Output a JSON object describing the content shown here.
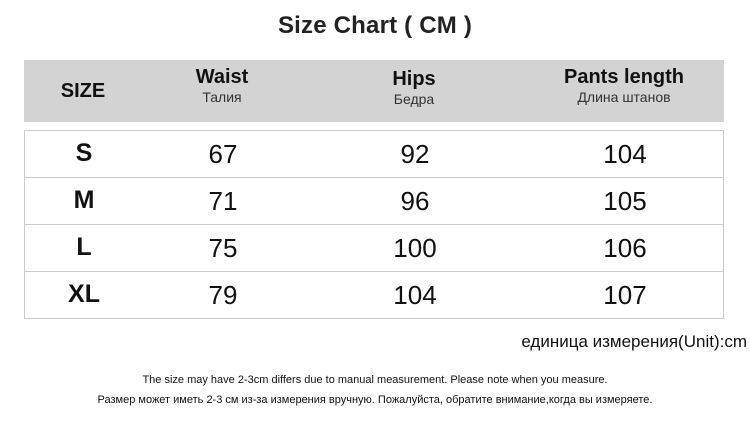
{
  "title": "Size Chart ( CM )",
  "table": {
    "headers": [
      {
        "en": "SIZE",
        "ru": ""
      },
      {
        "en": "Waist",
        "ru": "Талия"
      },
      {
        "en": "Hips",
        "ru": "Бедра"
      },
      {
        "en": "Pants length",
        "ru": "Длина штанов"
      }
    ],
    "rows": [
      [
        "S",
        "67",
        "92",
        "104"
      ],
      [
        "M",
        "71",
        "96",
        "105"
      ],
      [
        "L",
        "75",
        "100",
        "106"
      ],
      [
        "XL",
        "79",
        "104",
        "107"
      ]
    ]
  },
  "unit_note": "единица измерения(Unit):cm",
  "notes": [
    "The size may have 2-3cm differs due to manual measurement. Please note when you measure.",
    "Размер может иметь 2-3 см из-за измерения вручную. Пожалуйста, обратите внимание,когда вы измеряете."
  ]
}
